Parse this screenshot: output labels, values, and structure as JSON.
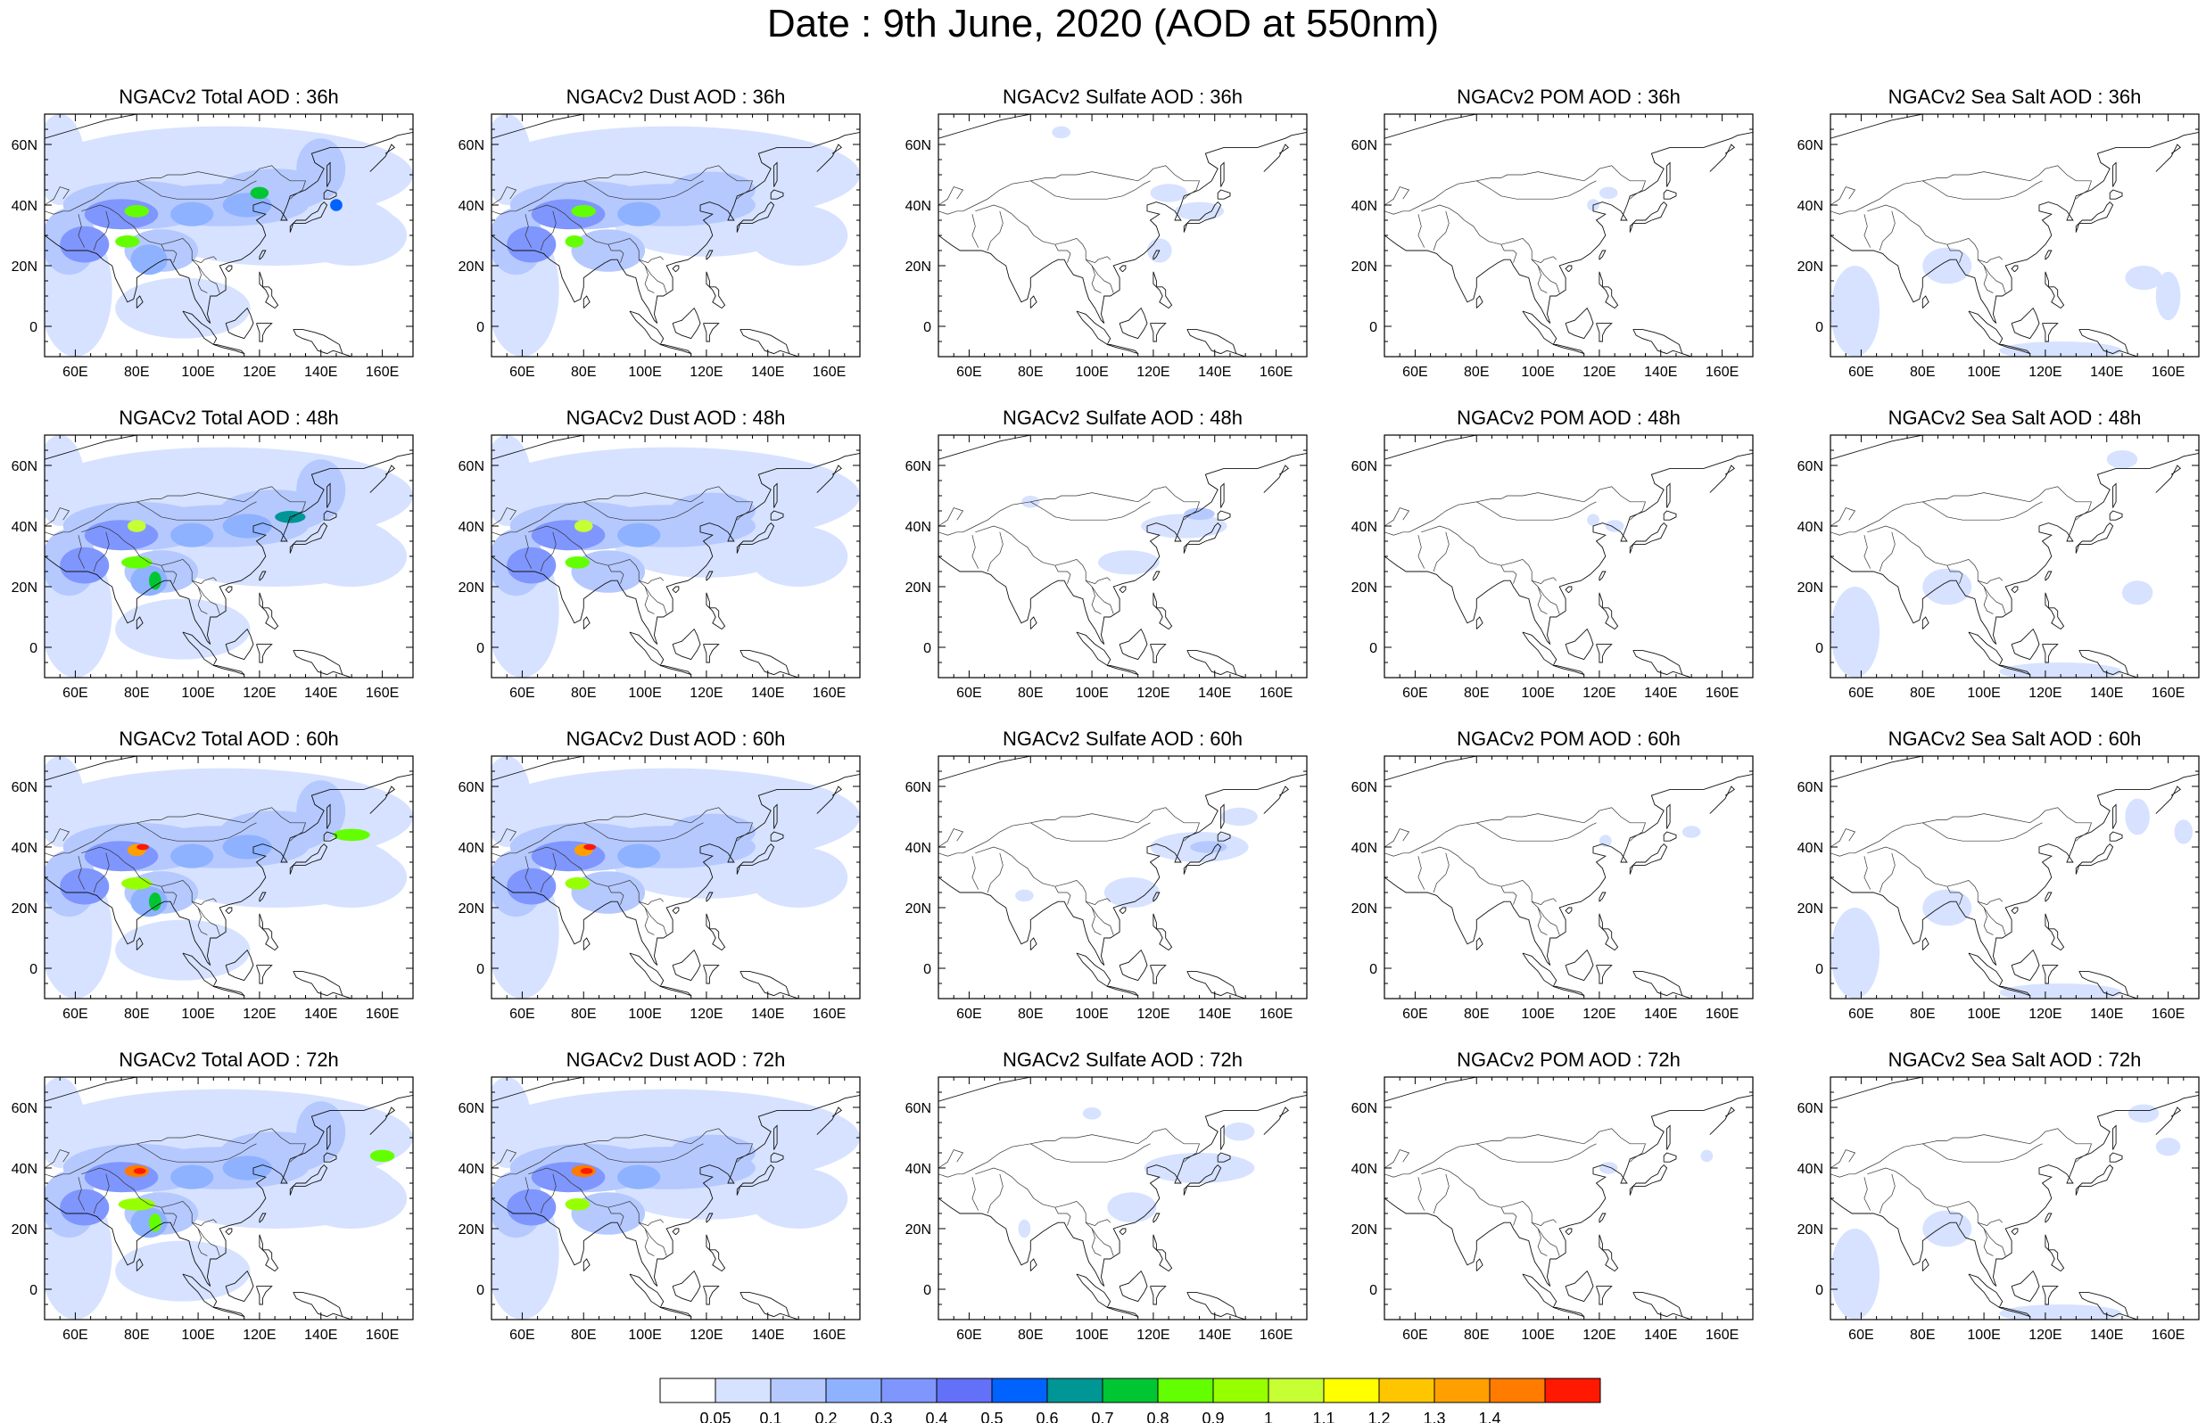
{
  "title": "Date : 9th June, 2020 (AOD at 550nm)",
  "panels": [
    [
      "NGACv2 Total AOD : 36h",
      "NGACv2 Dust AOD : 36h",
      "NGACv2 Sulfate AOD : 36h",
      "NGACv2 POM AOD : 36h",
      "NGACv2 Sea Salt AOD : 36h"
    ],
    [
      "NGACv2 Total AOD : 48h",
      "NGACv2 Dust AOD : 48h",
      "NGACv2 Sulfate AOD : 48h",
      "NGACv2 POM AOD : 48h",
      "NGACv2 Sea Salt AOD : 48h"
    ],
    [
      "NGACv2 Total AOD : 60h",
      "NGACv2 Dust AOD : 60h",
      "NGACv2 Sulfate AOD : 60h",
      "NGACv2 POM AOD : 60h",
      "NGACv2 Sea Salt AOD : 60h"
    ],
    [
      "NGACv2 Total AOD : 72h",
      "NGACv2 Dust AOD : 72h",
      "NGACv2 Sulfate AOD : 72h",
      "NGACv2 POM AOD : 72h",
      "NGACv2 Sea Salt  AOD : 72h"
    ]
  ],
  "map_extent": {
    "lon": [
      50,
      170
    ],
    "lat": [
      -10,
      70
    ]
  },
  "lon_ticks": [
    "60E",
    "80E",
    "100E",
    "120E",
    "140E",
    "160E"
  ],
  "lat_ticks": [
    "60N",
    "40N",
    "20N",
    "0"
  ],
  "colorbar": {
    "colors": [
      "#ffffff",
      "#d6e2ff",
      "#b5c9ff",
      "#8eb2ff",
      "#7f96ff",
      "#6370f8",
      "#0063ff",
      "#009696",
      "#00c633",
      "#63ff00",
      "#96ff00",
      "#c6ff33",
      "#ffff00",
      "#ffc600",
      "#ffa000",
      "#ff7c00",
      "#ff1900"
    ],
    "labels": [
      "0.05",
      "0.1",
      "0.2",
      "0.3",
      "0.4",
      "0.5",
      "0.6",
      "0.7",
      "0.8",
      "0.9",
      "1",
      "1.1",
      "1.2",
      "1.3",
      "1.4"
    ]
  }
}
